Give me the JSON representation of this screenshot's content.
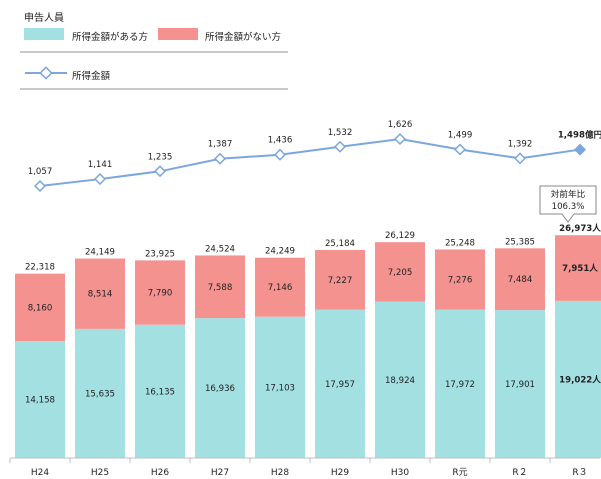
{
  "legend": {
    "title": "申告人員",
    "with_income": "所得金額がある方",
    "without_income": "所得金額がない方",
    "income_line": "所得金額"
  },
  "colors": {
    "with_income": "#a3e0e2",
    "without_income": "#f49290",
    "line": "#7ba7dc",
    "axis": "#bfbfbf"
  },
  "callout": {
    "line1": "対前年比",
    "line2": "106.3%"
  },
  "chart_data": {
    "type": "bar",
    "stacked": true,
    "categories": [
      "H24",
      "H25",
      "H26",
      "H27",
      "H28",
      "H29",
      "H30",
      "R元",
      "R２",
      "R３"
    ],
    "series": [
      {
        "name": "所得金額がある方",
        "values": [
          14158,
          15635,
          16135,
          16936,
          17103,
          17957,
          18924,
          17972,
          17901,
          19022
        ]
      },
      {
        "name": "所得金額がない方",
        "values": [
          8160,
          8514,
          7790,
          7588,
          7146,
          7227,
          7205,
          7276,
          7484,
          7951
        ]
      },
      {
        "name": "所得金額",
        "type": "line",
        "values": [
          1057,
          1141,
          1235,
          1387,
          1436,
          1532,
          1626,
          1499,
          1392,
          1498
        ]
      }
    ],
    "totals": [
      22318,
      24149,
      23925,
      24524,
      24249,
      25184,
      26129,
      25248,
      25385,
      26973
    ],
    "bar_labels": {
      "bottom": [
        "14,158",
        "15,635",
        "16,135",
        "16,936",
        "17,103",
        "17,957",
        "18,924",
        "17,972",
        "17,901",
        "19,022人"
      ],
      "top": [
        "8,160",
        "8,514",
        "7,790",
        "7,588",
        "7,146",
        "7,227",
        "7,205",
        "7,276",
        "7,484",
        "7,951人"
      ],
      "total": [
        "22,318",
        "24,149",
        "23,925",
        "24,524",
        "24,249",
        "25,184",
        "26,129",
        "25,248",
        "25,385",
        "26,973人"
      ]
    },
    "line_labels": [
      "1,057",
      "1,141",
      "1,235",
      "1,387",
      "1,436",
      "1,532",
      "1,626",
      "1,499",
      "1,392",
      "1,498億円"
    ]
  }
}
